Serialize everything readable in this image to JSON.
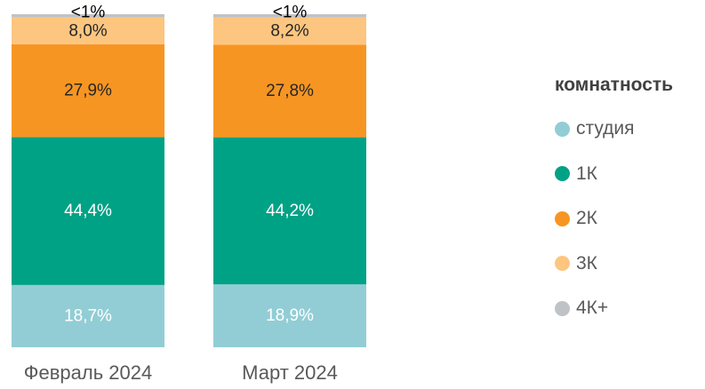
{
  "chart_data": {
    "type": "bar",
    "stacked": true,
    "normalized": true,
    "categories": [
      "Февраль 2024",
      "Март 2024"
    ],
    "ylim": [
      0,
      100
    ],
    "grid": false,
    "legend_position": "right",
    "legend_title": "комнатность",
    "series": [
      {
        "name": "студия",
        "color": "#92CDD5",
        "values": [
          18.7,
          18.9
        ],
        "labels": [
          "18,7%",
          "18,9%"
        ],
        "label_color": "#ffffff"
      },
      {
        "name": "1К",
        "color": "#00A286",
        "values": [
          44.4,
          44.2
        ],
        "labels": [
          "44,4%",
          "44,2%"
        ],
        "label_color": "#ffffff"
      },
      {
        "name": "2К",
        "color": "#F79522",
        "values": [
          27.9,
          27.8
        ],
        "labels": [
          "27,9%",
          "27,8%"
        ],
        "label_color": "#262626"
      },
      {
        "name": "3К",
        "color": "#FDC680",
        "values": [
          8.0,
          8.2
        ],
        "labels": [
          "8,0%",
          "8,2%"
        ],
        "label_color": "#262626"
      },
      {
        "name": "4К+",
        "color": "#BFC2C7",
        "values": [
          1.0,
          1.0
        ],
        "labels": [
          "<1%",
          "<1%"
        ],
        "label_color": "#000000"
      }
    ]
  }
}
